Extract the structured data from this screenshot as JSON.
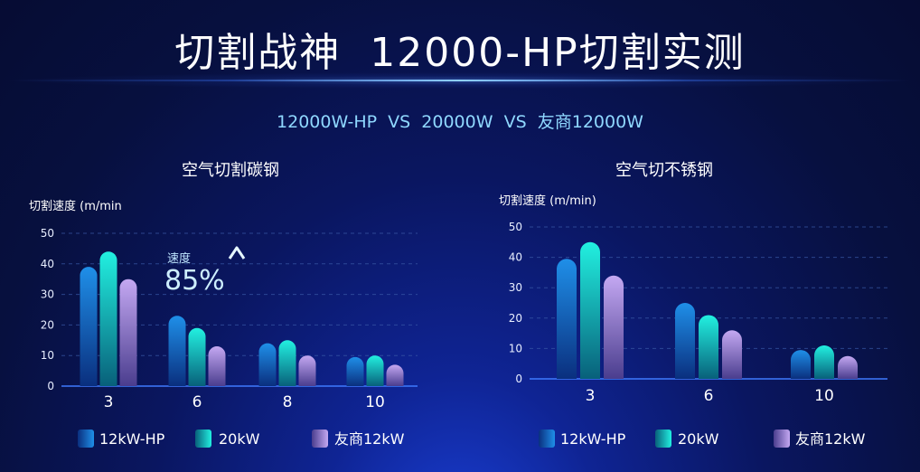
{
  "header": {
    "title": "切割战神  12000-HP切割实测",
    "subtitle": "12000W-HP  VS  20000W  VS  友商12000W"
  },
  "colors": {
    "series_12kw_hp": [
      "#1f8fe8",
      "#0a2f7e"
    ],
    "series_20kw": [
      "#22f0e0",
      "#08607a"
    ],
    "series_competitor": [
      "#c4a8f2",
      "#4a3d8e"
    ]
  },
  "chart_data": [
    {
      "type": "bar",
      "title": "空气切割碳钢",
      "ylabel": "切割速度 (m/min",
      "xlabel": "",
      "categories": [
        "3",
        "6",
        "8",
        "10"
      ],
      "ylim": [
        0,
        50
      ],
      "yticks": [
        "0",
        "10",
        "20",
        "30",
        "40",
        "50"
      ],
      "grid": true,
      "legend_position": "bottom",
      "series": [
        {
          "name": "12kW-HP",
          "values": [
            39,
            23,
            14,
            9.5
          ]
        },
        {
          "name": "20kW",
          "values": [
            44,
            19,
            15,
            10
          ]
        },
        {
          "name": "友商12kW",
          "values": [
            35,
            13,
            10,
            7
          ]
        }
      ],
      "annotation": {
        "label": "速度",
        "value": "85%",
        "arrow": "up-arrow-icon"
      }
    },
    {
      "type": "bar",
      "title": "空气切不锈钢",
      "ylabel": "切割速度 (m/min)",
      "xlabel": "",
      "categories": [
        "3",
        "6",
        "10"
      ],
      "ylim": [
        0,
        50
      ],
      "yticks": [
        "0",
        "10",
        "20",
        "30",
        "40",
        "50"
      ],
      "grid": true,
      "legend_position": "bottom",
      "series": [
        {
          "name": "12kW-HP",
          "values": [
            39.5,
            25,
            9.5
          ]
        },
        {
          "name": "20kW",
          "values": [
            45,
            21,
            11
          ]
        },
        {
          "name": "友商12kW",
          "values": [
            34,
            16,
            7.5
          ]
        }
      ]
    }
  ]
}
